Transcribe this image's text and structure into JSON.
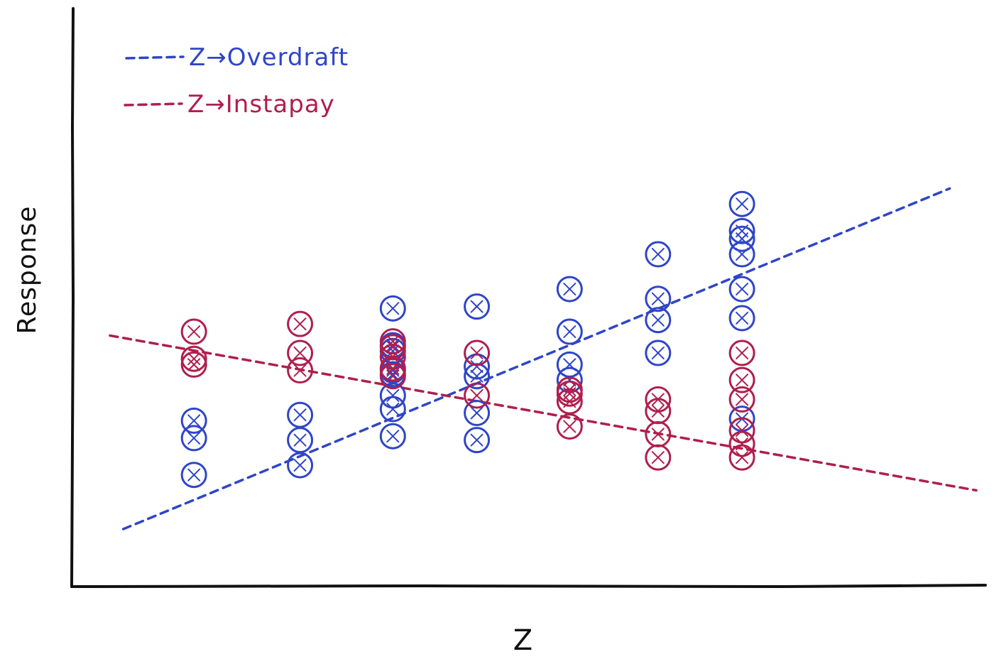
{
  "chart_data": {
    "type": "scatter",
    "xlabel": "Z",
    "ylabel": "Response",
    "legend_position": "top-left",
    "grid": false,
    "axis_ticks": false,
    "xlim": [
      0,
      10
    ],
    "ylim": [
      0,
      10
    ],
    "series": [
      {
        "name": "Z→Overdraft",
        "color": "#2f45c8",
        "marker": "circle-x",
        "points": [
          {
            "x": 1.15,
            "y": 1.4
          },
          {
            "x": 1.15,
            "y": 2.35
          },
          {
            "x": 1.15,
            "y": 2.8
          },
          {
            "x": 2.35,
            "y": 1.65
          },
          {
            "x": 2.35,
            "y": 2.3
          },
          {
            "x": 2.35,
            "y": 2.95
          },
          {
            "x": 3.4,
            "y": 2.4
          },
          {
            "x": 3.4,
            "y": 3.1
          },
          {
            "x": 3.4,
            "y": 3.45
          },
          {
            "x": 3.4,
            "y": 4.0
          },
          {
            "x": 3.4,
            "y": 4.1
          },
          {
            "x": 3.4,
            "y": 4.6
          },
          {
            "x": 3.4,
            "y": 4.75
          },
          {
            "x": 3.4,
            "y": 5.7
          },
          {
            "x": 4.35,
            "y": 2.3
          },
          {
            "x": 4.35,
            "y": 3.0
          },
          {
            "x": 4.35,
            "y": 3.95
          },
          {
            "x": 4.35,
            "y": 4.2
          },
          {
            "x": 4.35,
            "y": 5.75
          },
          {
            "x": 5.4,
            "y": 3.85
          },
          {
            "x": 5.4,
            "y": 4.25
          },
          {
            "x": 5.4,
            "y": 5.1
          },
          {
            "x": 5.4,
            "y": 6.2
          },
          {
            "x": 6.4,
            "y": 4.55
          },
          {
            "x": 6.4,
            "y": 5.4
          },
          {
            "x": 6.4,
            "y": 5.95
          },
          {
            "x": 6.4,
            "y": 7.1
          },
          {
            "x": 7.35,
            "y": 2.85
          },
          {
            "x": 7.35,
            "y": 5.45
          },
          {
            "x": 7.35,
            "y": 6.2
          },
          {
            "x": 7.35,
            "y": 7.1
          },
          {
            "x": 7.35,
            "y": 7.5
          },
          {
            "x": 7.35,
            "y": 7.7
          },
          {
            "x": 7.35,
            "y": 8.4
          }
        ]
      },
      {
        "name": "Z→Instapay",
        "color": "#b01e4d",
        "marker": "circle-x",
        "points": [
          {
            "x": 1.15,
            "y": 4.25
          },
          {
            "x": 1.15,
            "y": 4.4
          },
          {
            "x": 1.15,
            "y": 5.1
          },
          {
            "x": 2.35,
            "y": 4.1
          },
          {
            "x": 2.35,
            "y": 4.55
          },
          {
            "x": 2.35,
            "y": 5.3
          },
          {
            "x": 3.4,
            "y": 3.95
          },
          {
            "x": 3.4,
            "y": 4.15
          },
          {
            "x": 3.4,
            "y": 4.45
          },
          {
            "x": 3.4,
            "y": 4.7
          },
          {
            "x": 3.4,
            "y": 4.85
          },
          {
            "x": 4.35,
            "y": 3.45
          },
          {
            "x": 4.35,
            "y": 4.55
          },
          {
            "x": 5.4,
            "y": 2.65
          },
          {
            "x": 5.4,
            "y": 3.3
          },
          {
            "x": 5.4,
            "y": 3.5
          },
          {
            "x": 5.4,
            "y": 3.6
          },
          {
            "x": 6.4,
            "y": 1.85
          },
          {
            "x": 6.4,
            "y": 2.45
          },
          {
            "x": 6.4,
            "y": 3.05
          },
          {
            "x": 6.4,
            "y": 3.35
          },
          {
            "x": 7.35,
            "y": 1.85
          },
          {
            "x": 7.35,
            "y": 2.2
          },
          {
            "x": 7.35,
            "y": 2.55
          },
          {
            "x": 7.35,
            "y": 3.35
          },
          {
            "x": 7.35,
            "y": 3.85
          },
          {
            "x": 7.35,
            "y": 4.55
          }
        ]
      }
    ],
    "trend_lines": [
      {
        "series": "Z→Overdraft",
        "color": "#2f45c8",
        "from": {
          "x": 0.35,
          "y": 0.0
        },
        "to": {
          "x": 9.7,
          "y": 8.8
        }
      },
      {
        "series": "Z→Instapay",
        "color": "#b01e4d",
        "from": {
          "x": 0.2,
          "y": 5.0
        },
        "to": {
          "x": 10.0,
          "y": 1.0
        }
      }
    ]
  }
}
